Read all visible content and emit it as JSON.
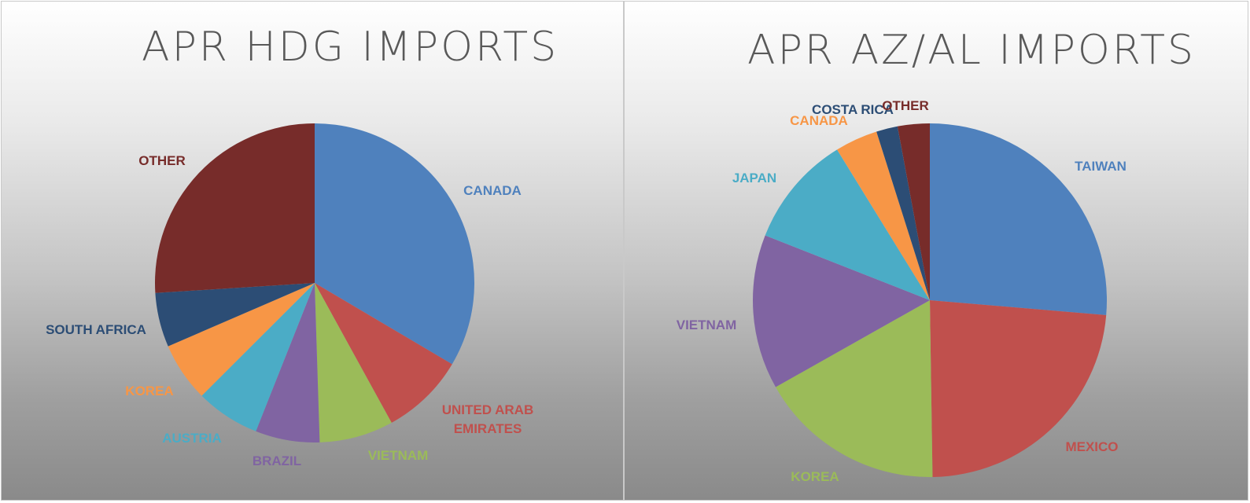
{
  "chart_data": [
    {
      "type": "pie",
      "title": "APR HDG IMPORTS",
      "categories": [
        "CANADA",
        "UNITED ARAB EMIRATES",
        "VIETNAM",
        "BRAZIL",
        "AUSTRIA",
        "KOREA",
        "SOUTH AFRICA",
        "OTHER"
      ],
      "values": [
        33.5,
        8.5,
        7.5,
        6.5,
        6.5,
        6,
        5.5,
        26
      ],
      "colors": [
        "#4F81BD",
        "#C0504D",
        "#9BBB59",
        "#8064A2",
        "#4BACC6",
        "#F79646",
        "#2C4D75",
        "#772C2A"
      ],
      "legend": "data labels outside"
    },
    {
      "type": "pie",
      "title": "APR AZ/AL IMPORTS",
      "categories": [
        "TAIWAN",
        "MEXICO",
        "KOREA",
        "VIETNAM",
        "JAPAN",
        "CANADA",
        "COSTA RICA",
        "OTHER"
      ],
      "values": [
        27,
        24,
        17.5,
        14.5,
        10.5,
        4,
        2,
        3
      ],
      "colors": [
        "#4F81BD",
        "#C0504D",
        "#9BBB59",
        "#8064A2",
        "#4BACC6",
        "#F79646",
        "#2C4D75",
        "#772C2A"
      ],
      "legend": "data labels outside"
    }
  ]
}
